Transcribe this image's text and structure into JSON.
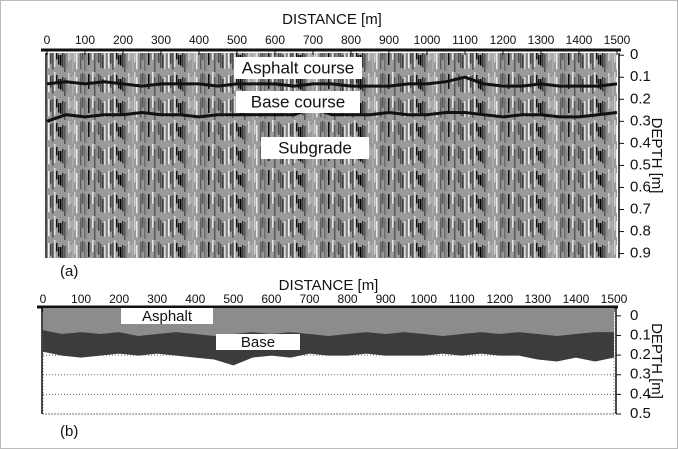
{
  "chart_data": [
    {
      "type": "line",
      "title": "DISTANCE [m]",
      "y_label": "DEPTH [m]",
      "panel_label": "(a)",
      "annotations": [
        "Asphalt course",
        "Base course",
        "Subgrade"
      ],
      "xlim": [
        0,
        1500
      ],
      "xticks": [
        0,
        100,
        200,
        300,
        400,
        500,
        600,
        700,
        800,
        900,
        1000,
        1100,
        1200,
        1300,
        1400,
        1500
      ],
      "ylim": [
        -0.01,
        0.92
      ],
      "yticks": [
        0,
        0.1,
        0.2,
        0.3,
        0.4,
        0.5,
        0.6,
        0.7,
        0.8,
        0.9
      ],
      "x": [
        0,
        50,
        100,
        150,
        200,
        250,
        300,
        350,
        400,
        450,
        500,
        550,
        600,
        650,
        700,
        750,
        800,
        850,
        900,
        950,
        1000,
        1050,
        1100,
        1150,
        1200,
        1250,
        1300,
        1350,
        1400,
        1450,
        1500
      ],
      "series": [
        {
          "color": "#111111",
          "values": [
            0.13,
            0.12,
            0.13,
            0.12,
            0.13,
            0.14,
            0.13,
            0.13,
            0.13,
            0.14,
            0.13,
            0.13,
            0.13,
            0.14,
            0.13,
            0.13,
            0.14,
            0.14,
            0.14,
            0.13,
            0.13,
            0.12,
            0.1,
            0.13,
            0.14,
            0.14,
            0.13,
            0.14,
            0.14,
            0.14,
            0.13
          ]
        },
        {
          "color": "#111111",
          "values": [
            0.3,
            0.27,
            0.28,
            0.27,
            0.27,
            0.26,
            0.27,
            0.27,
            0.28,
            0.27,
            0.27,
            0.27,
            0.27,
            0.27,
            0.24,
            0.27,
            0.27,
            0.27,
            0.26,
            0.27,
            0.27,
            0.26,
            0.26,
            0.27,
            0.28,
            0.27,
            0.27,
            0.28,
            0.28,
            0.27,
            0.26
          ]
        }
      ]
    },
    {
      "type": "area",
      "title": "DISTANCE [m]",
      "y_label": "DEPTH [m]",
      "panel_label": "(b)",
      "annotations": [
        "Asphalt",
        "Base"
      ],
      "grid": true,
      "xlim": [
        0,
        1500
      ],
      "xticks": [
        0,
        100,
        200,
        300,
        400,
        500,
        600,
        700,
        800,
        900,
        1000,
        1100,
        1200,
        1300,
        1400,
        1500
      ],
      "ylim": [
        -0.04,
        0.5
      ],
      "yticks": [
        0,
        0.1,
        0.2,
        0.3,
        0.4,
        0.5
      ],
      "x": [
        0,
        50,
        100,
        150,
        200,
        250,
        300,
        350,
        400,
        450,
        500,
        550,
        600,
        650,
        700,
        750,
        800,
        850,
        900,
        950,
        1000,
        1050,
        1100,
        1150,
        1200,
        1250,
        1300,
        1350,
        1400,
        1450,
        1500
      ],
      "series": [
        {
          "color": "#3c3c3c",
          "values": [
            0.18,
            0.2,
            0.21,
            0.2,
            0.19,
            0.2,
            0.19,
            0.2,
            0.21,
            0.22,
            0.25,
            0.21,
            0.2,
            0.21,
            0.19,
            0.2,
            0.2,
            0.19,
            0.2,
            0.2,
            0.2,
            0.19,
            0.2,
            0.19,
            0.2,
            0.2,
            0.22,
            0.23,
            0.21,
            0.23,
            0.21
          ]
        },
        {
          "color": "#8c8c8c",
          "values": [
            0.07,
            0.09,
            0.08,
            0.09,
            0.08,
            0.1,
            0.09,
            0.08,
            0.09,
            0.1,
            0.09,
            0.08,
            0.09,
            0.08,
            0.09,
            0.1,
            0.09,
            0.08,
            0.09,
            0.08,
            0.09,
            0.1,
            0.09,
            0.08,
            0.09,
            0.08,
            0.09,
            0.1,
            0.09,
            0.08,
            0.08
          ]
        }
      ]
    }
  ]
}
